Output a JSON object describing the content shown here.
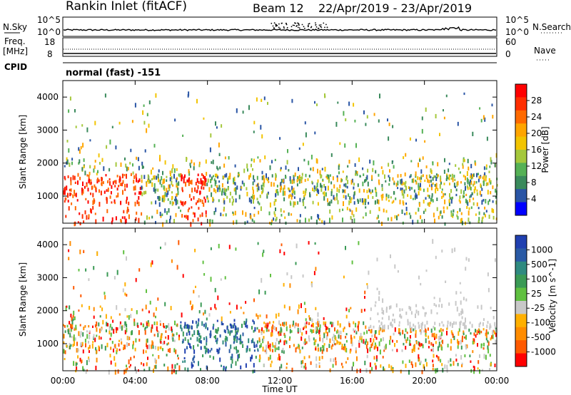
{
  "header": {
    "station": "Rankin Inlet (fitACF)",
    "beam": "Beam 12",
    "date_range": "22/Apr/2019 - 23/Apr/2019"
  },
  "status_panels": {
    "nsky_label": "N.Sky",
    "nsky_ticks": [
      "10^5",
      "10^0"
    ],
    "nsearch_label": "N.Search",
    "nsearch_ticks": [
      "10^5",
      "10^0"
    ],
    "freq_label": "Freq.",
    "freq_unit": "[MHz]",
    "freq_ticks": [
      "18",
      "8"
    ],
    "nave_label": "Nave",
    "nave_ticks": [
      "60",
      "0"
    ],
    "cpid_label": "CPID",
    "cpid_value": "normal (fast) -151"
  },
  "chart_data": [
    {
      "type": "heatmap",
      "name": "power",
      "xlabel": "",
      "ylabel": "Slant Range [km]",
      "y_ticks": [
        "4000",
        "3000",
        "2000",
        "1000"
      ],
      "ylim": [
        180,
        4500
      ],
      "colorbar_label": "Power [dB]",
      "colorbar_ticks": [
        "28",
        "24",
        "20",
        "16",
        "12",
        "8",
        "4"
      ],
      "colorbar_colors": [
        "#ff0000",
        "#ff2e00",
        "#ff6a00",
        "#ffa500",
        "#f2c400",
        "#a5c83c",
        "#55b155",
        "#3a8a5c",
        "#2a55a5",
        "#0000ff"
      ],
      "x_tick_labels": []
    },
    {
      "type": "heatmap",
      "name": "velocity",
      "xlabel": "Time UT",
      "ylabel": "Slant Range [km]",
      "y_ticks": [
        "4000",
        "3000",
        "2000",
        "1000"
      ],
      "ylim": [
        180,
        4500
      ],
      "colorbar_label": "Velocity [m s^-1]",
      "colorbar_ticks": [
        "1000",
        "500",
        "100",
        "25",
        "-25",
        "-100",
        "-500",
        "-1000"
      ],
      "colorbar_colors": [
        "#2040b0",
        "#2a5aa5",
        "#2f8a80",
        "#3a9a55",
        "#60c040",
        "#c8c8c8",
        "#ffb000",
        "#ff8c00",
        "#ff5a00",
        "#ff0000"
      ],
      "x_tick_labels": [
        "00:00",
        "04:00",
        "08:00",
        "12:00",
        "16:00",
        "20:00",
        "00:00"
      ]
    }
  ]
}
